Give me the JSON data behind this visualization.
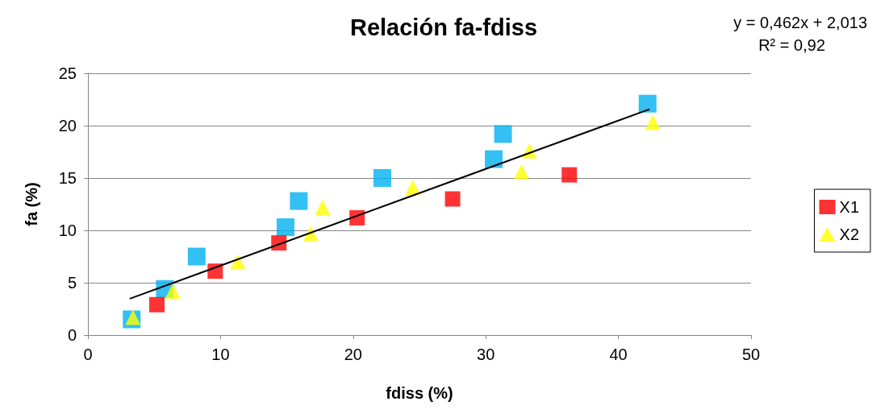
{
  "chart_data": {
    "type": "scatter",
    "title": "Relación fa-fdiss",
    "xlabel": "fdiss (%)",
    "ylabel": "fa (%)",
    "annotations": [
      "y = 0,462x + 2,013",
      "R² = 0,92"
    ],
    "xlim": [
      0,
      50
    ],
    "xticks": [
      0,
      10,
      20,
      30,
      40,
      50
    ],
    "ylim": [
      0,
      25
    ],
    "yticks": [
      0,
      5,
      10,
      15,
      20,
      25
    ],
    "grid": "y",
    "legend": "right",
    "series": [
      {
        "color": "#00b0f0",
        "marker": "square",
        "x": [
          3.3,
          5.8,
          8.2,
          14.9,
          15.9,
          22.2,
          30.6,
          31.3,
          42.2
        ],
        "values": [
          1.5,
          4.4,
          7.5,
          10.3,
          12.8,
          15.0,
          16.8,
          19.2,
          22.1
        ]
      },
      {
        "name": "X1",
        "color": "#ff0000",
        "marker": "square",
        "x": [
          5.2,
          9.6,
          14.4,
          20.3,
          27.5,
          36.3
        ],
        "values": [
          2.9,
          6.1,
          8.8,
          11.2,
          13.0,
          15.3
        ]
      },
      {
        "name": "X2",
        "color": "#ffff00",
        "marker": "triangle",
        "x": [
          3.4,
          6.4,
          11.3,
          16.8,
          17.7,
          24.5,
          32.7,
          33.3,
          42.6
        ],
        "values": [
          1.7,
          4.2,
          7.0,
          9.7,
          12.2,
          14.1,
          15.6,
          17.6,
          20.3
        ]
      },
      {
        "type": "line",
        "color": "#000000",
        "marker": "none",
        "x": [
          3.2,
          42.3
        ],
        "values": [
          3.49,
          21.55
        ]
      }
    ]
  }
}
